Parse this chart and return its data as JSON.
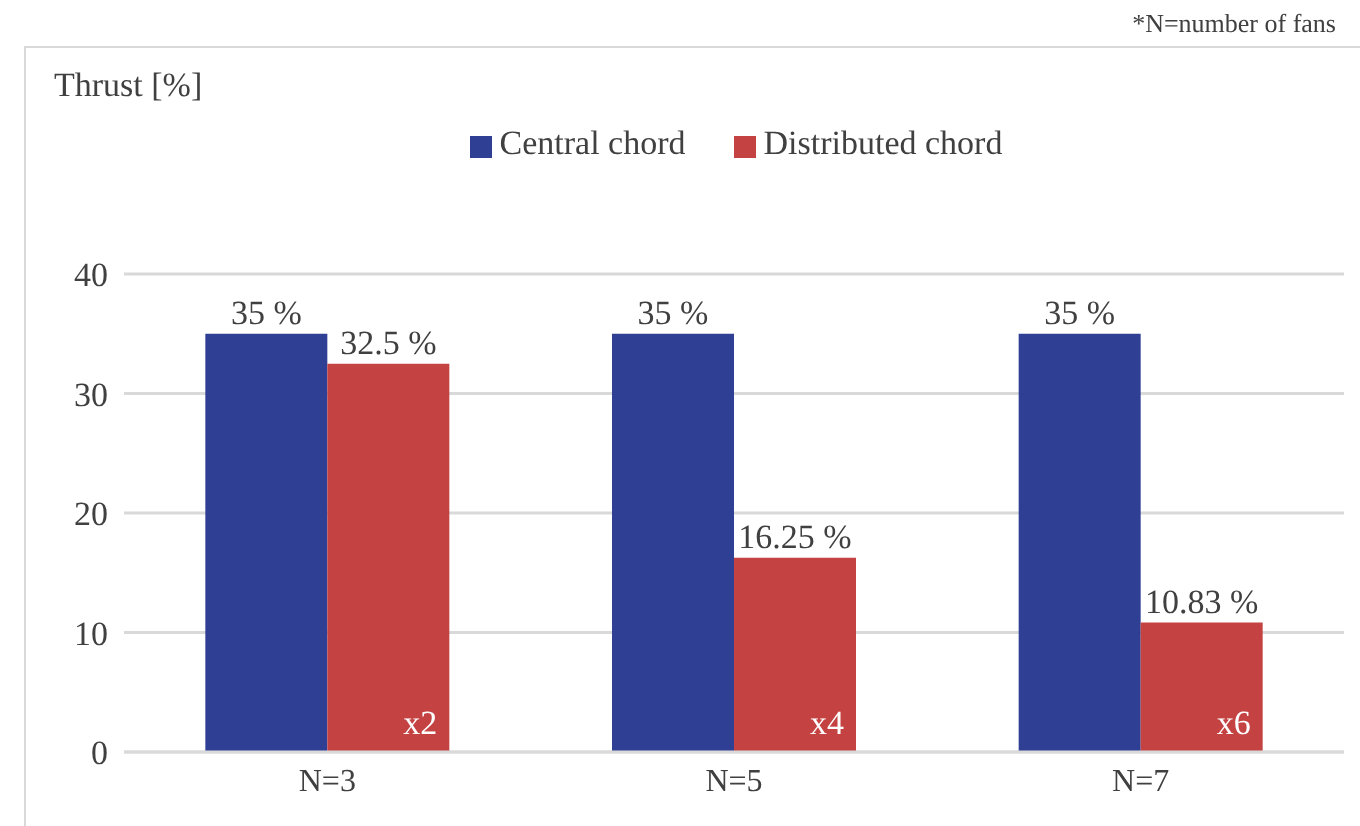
{
  "chart_data": {
    "type": "bar",
    "ylabel": "Thrust [%]",
    "categories": [
      "N=3",
      "N=5",
      "N=7"
    ],
    "series": [
      {
        "name": "Central chord",
        "color": "#2e3f94",
        "values": [
          35,
          35,
          35
        ],
        "value_labels": [
          "35 %",
          "35 %",
          "35 %"
        ]
      },
      {
        "name": "Distributed chord",
        "color": "#c44242",
        "values": [
          32.5,
          16.25,
          10.83
        ],
        "value_labels": [
          "32.5 %",
          "16.25 %",
          "10.83 %"
        ]
      }
    ],
    "ylim": [
      0,
      40
    ],
    "yticks": [
      0,
      10,
      20,
      30,
      40
    ],
    "grid": "y",
    "legend": "top",
    "annotations": [
      "*N=number of fans",
      "x2",
      "x4",
      "x6"
    ]
  }
}
